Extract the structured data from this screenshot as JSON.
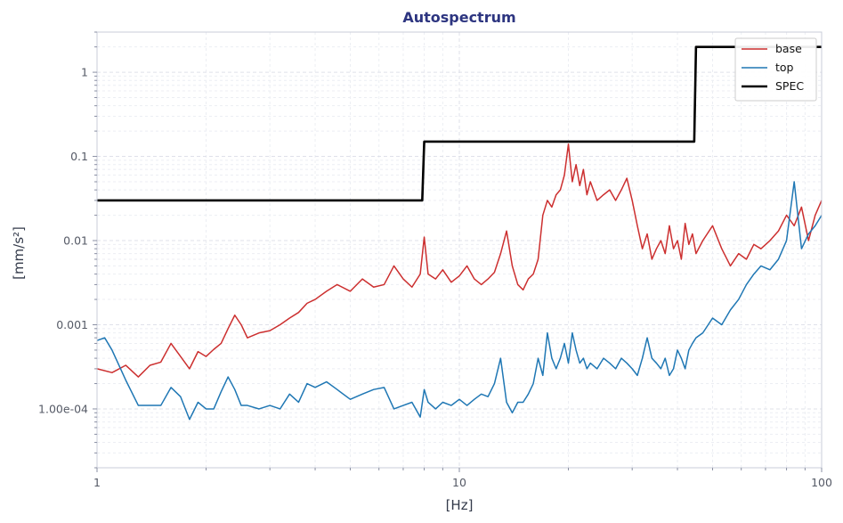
{
  "chart_data": {
    "type": "line",
    "title": "Autospectrum",
    "xlabel": "[Hz]",
    "ylabel": "[mm/s²]",
    "xscale": "log",
    "yscale": "log",
    "xlim": [
      1,
      100
    ],
    "ylim": [
      2e-05,
      3
    ],
    "grid": true,
    "legend_position": "top-right",
    "x_ticks": [
      {
        "value": 1,
        "label": "1"
      },
      {
        "value": 10,
        "label": "10"
      },
      {
        "value": 100,
        "label": "100"
      }
    ],
    "y_ticks": [
      {
        "value": 0.0001,
        "label": "1.00e-04"
      },
      {
        "value": 0.001,
        "label": "0.001"
      },
      {
        "value": 0.01,
        "label": "0.01"
      },
      {
        "value": 0.1,
        "label": "0.1"
      },
      {
        "value": 1,
        "label": "1"
      }
    ],
    "series": [
      {
        "name": "base",
        "color": "#cc2f2f",
        "x": [
          1,
          1.1,
          1.2,
          1.3,
          1.4,
          1.5,
          1.6,
          1.7,
          1.8,
          1.9,
          2.0,
          2.1,
          2.2,
          2.3,
          2.4,
          2.5,
          2.6,
          2.8,
          3.0,
          3.2,
          3.4,
          3.6,
          3.8,
          4.0,
          4.3,
          4.6,
          5.0,
          5.4,
          5.8,
          6.2,
          6.6,
          7.0,
          7.4,
          7.8,
          8.0,
          8.2,
          8.6,
          9.0,
          9.5,
          10,
          10.5,
          11,
          11.5,
          12,
          12.5,
          13,
          13.5,
          14,
          14.5,
          15,
          15.5,
          16,
          16.5,
          17,
          17.5,
          18,
          18.5,
          19,
          19.5,
          20,
          20.5,
          21,
          21.5,
          22,
          22.5,
          23,
          24,
          25,
          26,
          27,
          28,
          29,
          30,
          31,
          32,
          33,
          34,
          35,
          36,
          37,
          38,
          39,
          40,
          41,
          42,
          43,
          44,
          45,
          47,
          50,
          53,
          56,
          59,
          62,
          65,
          68,
          72,
          76,
          80,
          84,
          88,
          92,
          96,
          100
        ],
        "values": [
          0.0003,
          0.00027,
          0.00033,
          0.00024,
          0.00033,
          0.00036,
          0.0006,
          0.00042,
          0.0003,
          0.00048,
          0.00042,
          0.00051,
          0.0006,
          0.0009,
          0.0013,
          0.001,
          0.0007,
          0.0008,
          0.00085,
          0.001,
          0.0012,
          0.0014,
          0.0018,
          0.002,
          0.0025,
          0.003,
          0.0025,
          0.0035,
          0.0028,
          0.003,
          0.005,
          0.0035,
          0.0028,
          0.004,
          0.011,
          0.004,
          0.0035,
          0.0045,
          0.0032,
          0.0038,
          0.005,
          0.0035,
          0.003,
          0.0035,
          0.0042,
          0.007,
          0.013,
          0.005,
          0.003,
          0.0026,
          0.0035,
          0.004,
          0.006,
          0.02,
          0.03,
          0.025,
          0.035,
          0.04,
          0.06,
          0.14,
          0.05,
          0.08,
          0.045,
          0.07,
          0.035,
          0.05,
          0.03,
          0.035,
          0.04,
          0.03,
          0.04,
          0.055,
          0.03,
          0.015,
          0.008,
          0.012,
          0.006,
          0.008,
          0.01,
          0.007,
          0.015,
          0.008,
          0.01,
          0.006,
          0.016,
          0.009,
          0.012,
          0.007,
          0.01,
          0.015,
          0.008,
          0.005,
          0.007,
          0.006,
          0.009,
          0.008,
          0.01,
          0.013,
          0.02,
          0.015,
          0.025,
          0.01,
          0.02,
          0.03
        ]
      },
      {
        "name": "top",
        "color": "#1f77b4",
        "x": [
          1,
          1.05,
          1.1,
          1.2,
          1.3,
          1.4,
          1.5,
          1.6,
          1.7,
          1.8,
          1.9,
          2.0,
          2.1,
          2.2,
          2.3,
          2.4,
          2.5,
          2.6,
          2.8,
          3.0,
          3.2,
          3.4,
          3.6,
          3.8,
          4.0,
          4.3,
          4.6,
          5.0,
          5.4,
          5.8,
          6.2,
          6.6,
          7.0,
          7.4,
          7.8,
          8.0,
          8.2,
          8.6,
          9.0,
          9.5,
          10,
          10.5,
          11,
          11.5,
          12,
          12.5,
          13,
          13.5,
          14,
          14.5,
          15,
          15.5,
          16,
          16.5,
          17,
          17.5,
          18,
          18.5,
          19,
          19.5,
          20,
          20.5,
          21,
          21.5,
          22,
          22.5,
          23,
          24,
          25,
          26,
          27,
          28,
          29,
          30,
          31,
          32,
          33,
          34,
          35,
          36,
          37,
          38,
          39,
          40,
          41,
          42,
          43,
          44,
          45,
          47,
          50,
          53,
          56,
          59,
          62,
          65,
          68,
          72,
          76,
          80,
          84,
          88,
          92,
          96,
          100
        ],
        "values": [
          0.00065,
          0.0007,
          0.0005,
          0.00022,
          0.00011,
          0.00011,
          0.00011,
          0.00018,
          0.00014,
          7.5e-05,
          0.00012,
          0.0001,
          0.0001,
          0.00016,
          0.00024,
          0.00017,
          0.00011,
          0.00011,
          0.0001,
          0.00011,
          0.0001,
          0.00015,
          0.00012,
          0.0002,
          0.00018,
          0.00021,
          0.00017,
          0.00013,
          0.00015,
          0.00017,
          0.00018,
          0.0001,
          0.00011,
          0.00012,
          8e-05,
          0.00017,
          0.00012,
          0.0001,
          0.00012,
          0.00011,
          0.00013,
          0.00011,
          0.00013,
          0.00015,
          0.00014,
          0.0002,
          0.0004,
          0.00012,
          9e-05,
          0.00012,
          0.00012,
          0.00015,
          0.0002,
          0.0004,
          0.00025,
          0.0008,
          0.0004,
          0.0003,
          0.0004,
          0.0006,
          0.00035,
          0.0008,
          0.0005,
          0.00035,
          0.0004,
          0.0003,
          0.00035,
          0.0003,
          0.0004,
          0.00035,
          0.0003,
          0.0004,
          0.00035,
          0.0003,
          0.00025,
          0.0004,
          0.0007,
          0.0004,
          0.00035,
          0.0003,
          0.0004,
          0.00025,
          0.0003,
          0.0005,
          0.0004,
          0.0003,
          0.0005,
          0.0006,
          0.0007,
          0.0008,
          0.0012,
          0.001,
          0.0015,
          0.002,
          0.003,
          0.004,
          0.005,
          0.0045,
          0.006,
          0.01,
          0.05,
          0.008,
          0.012,
          0.015,
          0.02
        ]
      },
      {
        "name": "SPEC",
        "color": "#000000",
        "x": [
          1,
          7.9,
          8.0,
          44.5,
          45.0,
          100
        ],
        "values": [
          0.03,
          0.03,
          0.15,
          0.15,
          2.0,
          2.0
        ]
      }
    ]
  }
}
